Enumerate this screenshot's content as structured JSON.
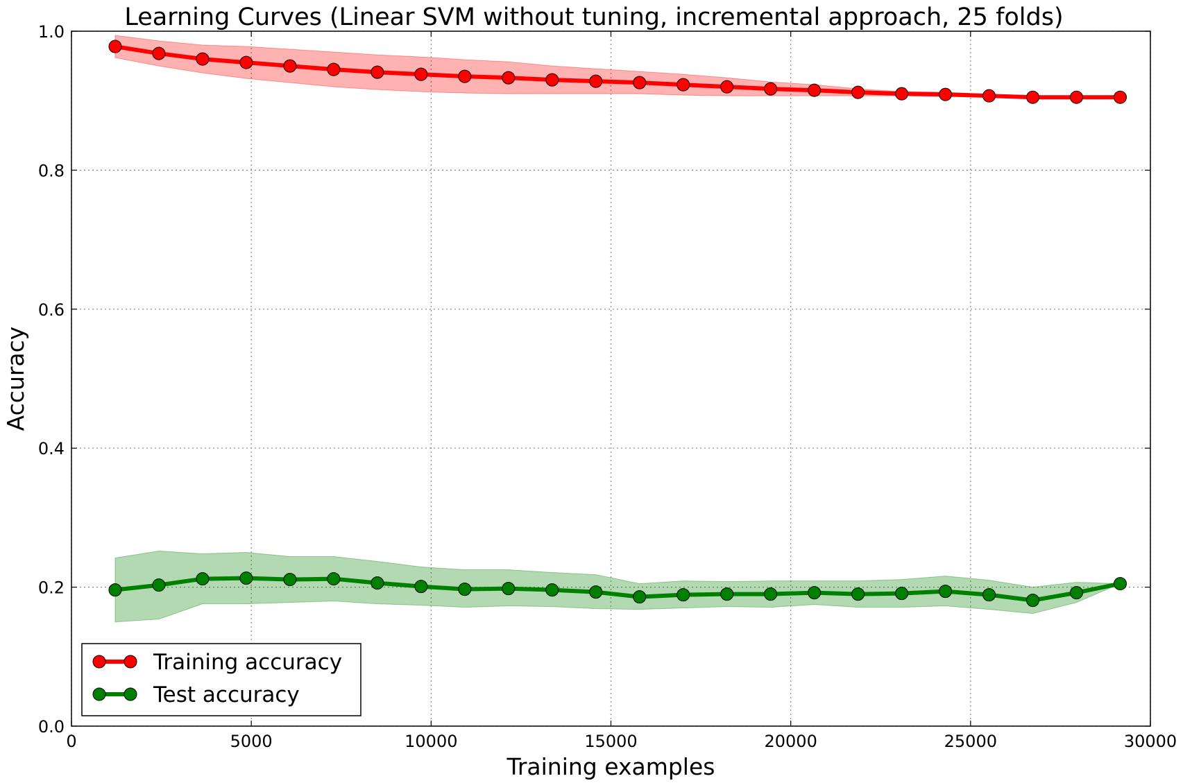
{
  "chart_data": {
    "type": "line",
    "title": "Learning Curves (Linear SVM without tuning, incremental approach, 25 folds)",
    "xlabel": "Training examples",
    "ylabel": "Accuracy",
    "xlim": [
      0,
      30000
    ],
    "ylim": [
      0.0,
      1.0
    ],
    "xticks": [
      0,
      5000,
      10000,
      15000,
      20000,
      25000,
      30000
    ],
    "xtick_labels": [
      "0",
      "5000",
      "10000",
      "15000",
      "20000",
      "25000",
      "30000"
    ],
    "yticks": [
      0.0,
      0.2,
      0.4,
      0.6,
      0.8,
      1.0
    ],
    "ytick_labels": [
      "0.0",
      "0.2",
      "0.4",
      "0.6",
      "0.8",
      "1.0"
    ],
    "grid": true,
    "legend_position": "lower-left",
    "x": [
      1215,
      2430,
      3645,
      4860,
      6075,
      7290,
      8505,
      9720,
      10935,
      12150,
      13365,
      14580,
      15795,
      17010,
      18225,
      19440,
      20655,
      21870,
      23085,
      24300,
      25515,
      26730,
      27945,
      29160
    ],
    "series": [
      {
        "name": "Training accuracy",
        "color": "#ff0000",
        "band_color": "#ff0000",
        "values": [
          0.978,
          0.968,
          0.96,
          0.955,
          0.95,
          0.945,
          0.941,
          0.938,
          0.935,
          0.933,
          0.93,
          0.928,
          0.926,
          0.923,
          0.92,
          0.917,
          0.915,
          0.912,
          0.91,
          0.909,
          0.907,
          0.905,
          0.905,
          0.905
        ],
        "lower": [
          0.962,
          0.95,
          0.94,
          0.932,
          0.926,
          0.92,
          0.916,
          0.913,
          0.911,
          0.91,
          0.91,
          0.91,
          0.91,
          0.908,
          0.907,
          0.907,
          0.907,
          0.907,
          0.907,
          0.906,
          0.905,
          0.904,
          0.904,
          0.904
        ],
        "upper": [
          0.994,
          0.986,
          0.98,
          0.978,
          0.974,
          0.97,
          0.966,
          0.963,
          0.959,
          0.956,
          0.95,
          0.946,
          0.942,
          0.938,
          0.933,
          0.927,
          0.923,
          0.917,
          0.913,
          0.912,
          0.909,
          0.906,
          0.906,
          0.906
        ]
      },
      {
        "name": "Test accuracy",
        "color": "#008000",
        "band_color": "#008000",
        "values": [
          0.196,
          0.203,
          0.212,
          0.213,
          0.211,
          0.212,
          0.206,
          0.201,
          0.197,
          0.198,
          0.196,
          0.193,
          0.186,
          0.189,
          0.19,
          0.19,
          0.192,
          0.19,
          0.191,
          0.194,
          0.189,
          0.181,
          0.192,
          0.205
        ],
        "lower": [
          0.15,
          0.154,
          0.176,
          0.176,
          0.178,
          0.18,
          0.176,
          0.174,
          0.171,
          0.173,
          0.172,
          0.169,
          0.168,
          0.17,
          0.172,
          0.171,
          0.175,
          0.171,
          0.171,
          0.173,
          0.168,
          0.162,
          0.178,
          0.205
        ],
        "upper": [
          0.242,
          0.252,
          0.248,
          0.25,
          0.244,
          0.244,
          0.237,
          0.229,
          0.225,
          0.225,
          0.221,
          0.218,
          0.205,
          0.209,
          0.208,
          0.209,
          0.209,
          0.209,
          0.211,
          0.216,
          0.21,
          0.2,
          0.207,
          0.205
        ]
      }
    ]
  }
}
